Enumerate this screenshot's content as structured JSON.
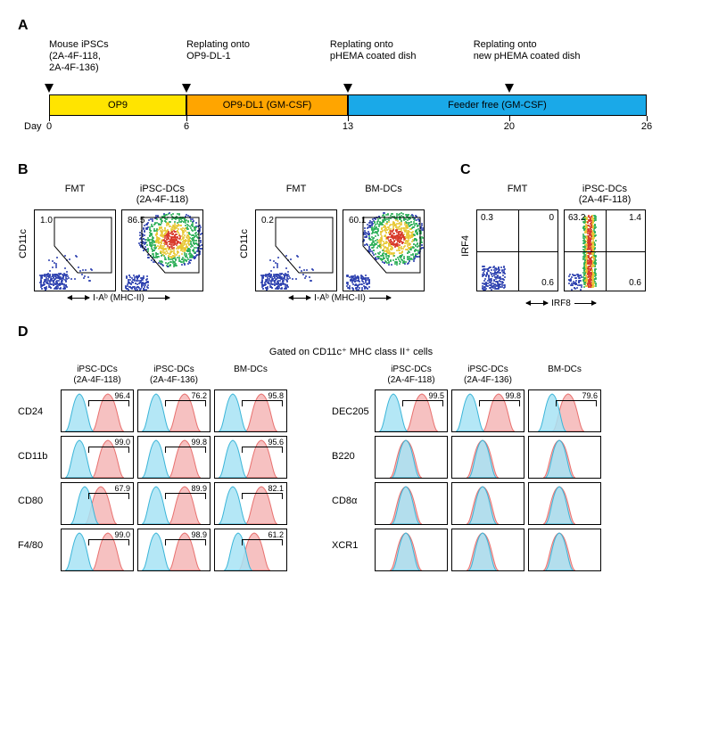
{
  "panelA": {
    "label": "A",
    "top_labels": [
      {
        "text": "Mouse iPSCs\n(2A-4F-118,\n2A-4F-136)",
        "left_pct": 0
      },
      {
        "text": "Replating onto\nOP9-DL-1",
        "left_pct": 23
      },
      {
        "text": "Replating onto\npHEMA coated dish",
        "left_pct": 47
      },
      {
        "text": "Replating onto\nnew pHEMA coated dish",
        "left_pct": 71
      }
    ],
    "arrows_left_pct": [
      0,
      23,
      50,
      77
    ],
    "segments": [
      {
        "label": "OP9",
        "color": "#ffe400",
        "width_pct": 23
      },
      {
        "label": "OP9-DL1 (GM-CSF)",
        "color": "#ffa500",
        "width_pct": 27
      },
      {
        "label": "Feeder free (GM-CSF)",
        "color": "#1aa9e8",
        "width_pct": 50
      }
    ],
    "day_word": "Day",
    "days": [
      {
        "d": "0",
        "pct": 0
      },
      {
        "d": "6",
        "pct": 23
      },
      {
        "d": "13",
        "pct": 50
      },
      {
        "d": "20",
        "pct": 77
      },
      {
        "d": "26",
        "pct": 100
      }
    ]
  },
  "panelB": {
    "label": "B",
    "ylab": "CD11c",
    "xlab": "I-Aᵇ (MHC-II)",
    "groups": [
      {
        "plots": [
          {
            "title": "FMT",
            "gate_num": "1.0",
            "gate_num_pos": [
              6,
              6
            ],
            "pattern": "fmt"
          },
          {
            "title": "iPSC-DCs\n(2A-4F-118)",
            "gate_num": "86.5",
            "gate_num_pos": [
              6,
              6
            ],
            "pattern": "dense"
          }
        ]
      },
      {
        "plots": [
          {
            "title": "FMT",
            "gate_num": "0.2",
            "gate_num_pos": [
              6,
              6
            ],
            "pattern": "fmt"
          },
          {
            "title": "BM-DCs",
            "gate_num": "60.1",
            "gate_num_pos": [
              6,
              6
            ],
            "pattern": "dense2"
          }
        ]
      }
    ]
  },
  "panelC": {
    "label": "C",
    "ylab": "IRF4",
    "xlab": "IRF8",
    "plots": [
      {
        "title": "FMT",
        "quads": {
          "tl": "0.3",
          "tr": "0",
          "br": "0.6"
        },
        "pattern": "fmt-quad"
      },
      {
        "title": "iPSC-DCs\n(2A-4F-118)",
        "quads": {
          "tl": "63.2",
          "tr": "1.4",
          "br": "0.6"
        },
        "pattern": "vert-stripe"
      }
    ]
  },
  "panelD": {
    "label": "D",
    "title": "Gated on CD11c⁺ MHC class II⁺ cells",
    "hist_colors": {
      "control": "#a7e3f4",
      "control_stroke": "#3bb5d8",
      "sample": "#f4b6b6",
      "sample_stroke": "#e8716f"
    },
    "col_titles": [
      "iPSC-DCs\n(2A-4F-118)",
      "iPSC-DCs\n(2A-4F-136)",
      "BM-DCs"
    ],
    "left_block": {
      "rows": [
        "CD24",
        "CD11b",
        "CD80",
        "F4/80"
      ],
      "data": [
        [
          {
            "n": "96.4",
            "sep": true
          },
          {
            "n": "76.2",
            "sep": true
          },
          {
            "n": "95.8",
            "sep": true
          }
        ],
        [
          {
            "n": "99.0",
            "sep": true
          },
          {
            "n": "99.8",
            "sep": true
          },
          {
            "n": "95.6",
            "sep": true
          }
        ],
        [
          {
            "n": "67.9",
            "sep": "partial"
          },
          {
            "n": "89.9",
            "sep": true
          },
          {
            "n": "82.1",
            "sep": true
          }
        ],
        [
          {
            "n": "99.0",
            "sep": true
          },
          {
            "n": "98.9",
            "sep": true
          },
          {
            "n": "61.2",
            "sep": "partial"
          }
        ]
      ]
    },
    "right_block": {
      "rows": [
        "DEC205",
        "B220",
        "CD8α",
        "XCR1"
      ],
      "data": [
        [
          {
            "n": "99.5",
            "sep": true
          },
          {
            "n": "99.8",
            "sep": true
          },
          {
            "n": "79.6",
            "sep": "partial"
          }
        ],
        [
          {
            "n": "",
            "sep": false
          },
          {
            "n": "",
            "sep": false
          },
          {
            "n": "",
            "sep": false
          }
        ],
        [
          {
            "n": "",
            "sep": false
          },
          {
            "n": "",
            "sep": false
          },
          {
            "n": "",
            "sep": false
          }
        ],
        [
          {
            "n": "",
            "sep": false
          },
          {
            "n": "",
            "sep": false
          },
          {
            "n": "",
            "sep": false
          }
        ]
      ]
    }
  }
}
